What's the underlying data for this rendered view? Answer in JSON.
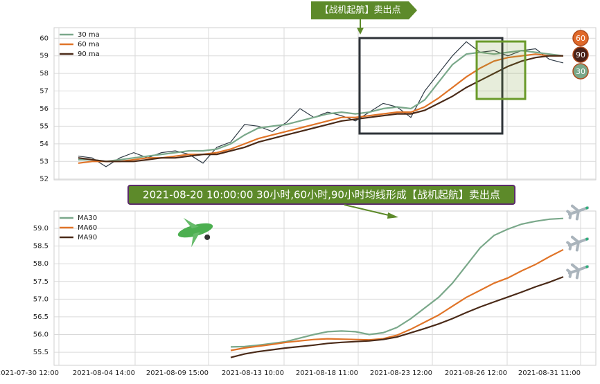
{
  "chart_data": [
    {
      "type": "line",
      "annotation": "【战机起航】卖出点",
      "x": [
        0,
        1,
        2,
        3,
        4,
        5,
        6,
        7,
        8,
        9,
        10,
        11,
        12,
        13,
        14,
        15,
        16,
        17,
        18,
        19,
        20,
        21,
        22,
        23,
        24,
        25,
        26,
        27,
        28,
        29,
        30,
        31,
        32,
        33,
        34,
        35
      ],
      "values": [
        53.3,
        53.2,
        52.7,
        53.2,
        53.5,
        53.2,
        53.5,
        53.6,
        53.4,
        52.9,
        53.8,
        54.1,
        55.1,
        55.0,
        54.7,
        55.2,
        56.0,
        55.5,
        55.8,
        55.6,
        55.3,
        55.8,
        56.3,
        56.1,
        55.5,
        57.0,
        58.0,
        59.0,
        59.8,
        59.2,
        59.3,
        59.0,
        59.3,
        59.4,
        58.8,
        58.6
      ],
      "color": "#2f3a45",
      "series": [
        {
          "name": "30 ma",
          "color": "#7aa88a",
          "values": [
            53.1,
            53.1,
            53.0,
            53.1,
            53.2,
            53.3,
            53.4,
            53.5,
            53.6,
            53.6,
            53.7,
            54.0,
            54.5,
            54.9,
            55.0,
            55.1,
            55.3,
            55.5,
            55.7,
            55.8,
            55.7,
            55.8,
            56.0,
            56.1,
            56.0,
            56.5,
            57.5,
            58.5,
            59.1,
            59.2,
            59.1,
            59.2,
            59.3,
            59.2,
            59.1,
            59.0
          ]
        },
        {
          "name": "60 ma",
          "color": "#e07428",
          "values": [
            52.9,
            53.0,
            53.0,
            53.0,
            53.1,
            53.2,
            53.2,
            53.3,
            53.4,
            53.4,
            53.5,
            53.7,
            54.0,
            54.3,
            54.5,
            54.7,
            54.9,
            55.1,
            55.3,
            55.5,
            55.5,
            55.6,
            55.7,
            55.8,
            55.8,
            56.1,
            56.6,
            57.2,
            57.8,
            58.3,
            58.7,
            58.9,
            59.0,
            59.1,
            59.0,
            59.0
          ]
        },
        {
          "name": "90 ma",
          "color": "#4a2a18",
          "values": [
            53.2,
            53.1,
            53.0,
            53.0,
            53.0,
            53.1,
            53.2,
            53.2,
            53.3,
            53.4,
            53.4,
            53.6,
            53.8,
            54.1,
            54.3,
            54.5,
            54.7,
            54.9,
            55.1,
            55.3,
            55.4,
            55.5,
            55.6,
            55.7,
            55.7,
            55.9,
            56.3,
            56.7,
            57.2,
            57.6,
            58.0,
            58.4,
            58.7,
            58.9,
            59.0,
            59.0
          ]
        }
      ],
      "badges": [
        {
          "label": "60",
          "color": "#e0692a"
        },
        {
          "label": "90",
          "color": "#4a2218"
        },
        {
          "label": "30",
          "color": "#7aa88a"
        }
      ],
      "xlim": [
        -1.75,
        37.35
      ],
      "ylim": [
        51.95,
        60.6
      ],
      "yticks": [
        52,
        53,
        54,
        55,
        56,
        57,
        58,
        59,
        60
      ],
      "grid": true,
      "legend": "upper left"
    },
    {
      "type": "line",
      "title": "2021-08-20 10:00:00 30小时,60小时,90小时均线形成【战机起航】卖出点",
      "x": [
        11,
        12,
        13,
        14,
        15,
        16,
        17,
        18,
        19,
        20,
        21,
        22,
        23,
        24,
        25,
        26,
        27,
        28,
        29,
        30,
        31,
        32,
        33,
        34,
        35
      ],
      "series": [
        {
          "name": "MA30",
          "color": "#7aa88a",
          "values": [
            55.65,
            55.66,
            55.7,
            55.75,
            55.8,
            55.9,
            56.0,
            56.08,
            56.1,
            56.08,
            56.0,
            56.05,
            56.2,
            56.45,
            56.75,
            57.05,
            57.45,
            57.95,
            58.45,
            58.8,
            58.98,
            59.12,
            59.2,
            59.26,
            59.28
          ]
        },
        {
          "name": "MA60",
          "color": "#e07428",
          "values": [
            55.55,
            55.62,
            55.67,
            55.72,
            55.78,
            55.82,
            55.86,
            55.88,
            55.87,
            55.86,
            55.85,
            55.88,
            55.98,
            56.15,
            56.35,
            56.55,
            56.8,
            57.05,
            57.25,
            57.45,
            57.6,
            57.8,
            57.98,
            58.2,
            58.4
          ]
        },
        {
          "name": "MA90",
          "color": "#4a2a18",
          "values": [
            55.35,
            55.45,
            55.52,
            55.57,
            55.62,
            55.66,
            55.7,
            55.75,
            55.78,
            55.8,
            55.82,
            55.86,
            55.93,
            56.05,
            56.17,
            56.3,
            56.45,
            56.62,
            56.78,
            56.92,
            57.06,
            57.2,
            57.35,
            57.48,
            57.63
          ]
        }
      ],
      "xlim": [
        -1.75,
        37.35
      ],
      "ylim": [
        55.13,
        59.49
      ],
      "xticks": [
        {
          "value": -1.4,
          "label": "2021-07-30 12:00"
        },
        {
          "value": 4.1,
          "label": "2021-08-04 14:00"
        },
        {
          "value": 9.4,
          "label": "2021-08-09 15:00"
        },
        {
          "value": 14.85,
          "label": "2021-08-13 10:00"
        },
        {
          "value": 20.2,
          "label": "2021-08-18 11:00"
        },
        {
          "value": 25.55,
          "label": "2021-08-23 12:00"
        },
        {
          "value": 30.95,
          "label": "2021-08-26 12:00"
        },
        {
          "value": 36.25,
          "label": "2021-08-31 11:00"
        }
      ],
      "yticks": [
        55.5,
        {
          "value": 56,
          "label": "56.0"
        },
        56.5,
        {
          "value": 57,
          "label": "57.0"
        },
        57.5,
        {
          "value": 58,
          "label": "58.0"
        },
        58.5,
        {
          "value": 59,
          "label": "59.0"
        }
      ],
      "grid": true,
      "legend": "upper left"
    }
  ]
}
